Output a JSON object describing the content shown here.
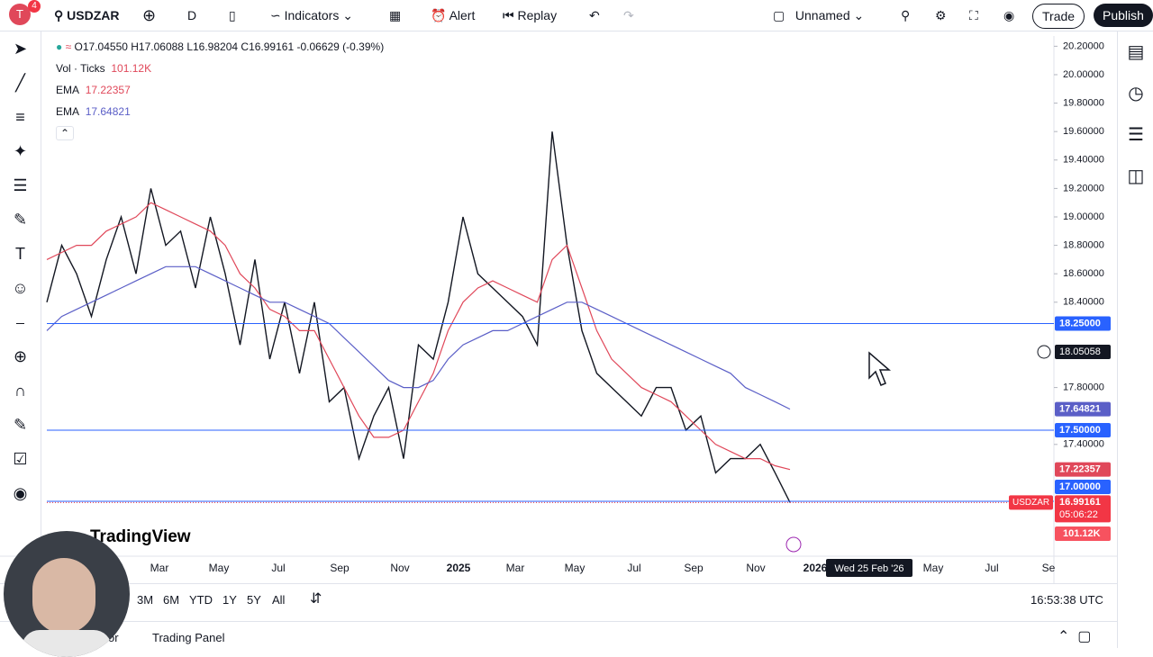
{
  "toolbar": {
    "badge": "4",
    "symbol": "USDZAR",
    "interval": "D",
    "indicators": "Indicators",
    "alert": "Alert",
    "replay": "Replay",
    "layout_name": "Unnamed",
    "trade": "Trade",
    "publish": "Publish"
  },
  "legend": {
    "open": "O17.04550",
    "high": "H17.06088",
    "low": "L16.98204",
    "close": "C16.99161",
    "change": "-0.06629 (-0.39%)",
    "vol_label": "Vol · Ticks",
    "vol_value": "101.12K",
    "ema_fast_label": "EMA",
    "ema_fast_value": "17.22357",
    "ema_slow_label": "EMA",
    "ema_slow_value": "17.64821"
  },
  "chart_data": {
    "type": "line",
    "ylim": [
      16.633,
      20.272
    ],
    "yticks": [
      {
        "value": 20.2,
        "label": "20.20000"
      },
      {
        "value": 20.0,
        "label": "20.00000"
      },
      {
        "value": 19.8,
        "label": "19.80000"
      },
      {
        "value": 19.6,
        "label": "19.60000"
      },
      {
        "value": 19.4,
        "label": "19.40000"
      },
      {
        "value": 19.2,
        "label": "19.20000"
      },
      {
        "value": 19.0,
        "label": "19.00000"
      },
      {
        "value": 18.8,
        "label": "18.80000"
      },
      {
        "value": 18.6,
        "label": "18.60000"
      },
      {
        "value": 18.4,
        "label": "18.40000"
      },
      {
        "value": 17.8,
        "label": "17.80000"
      },
      {
        "value": 17.4,
        "label": "17.40000"
      }
    ],
    "series": [
      {
        "name": "USDZAR",
        "color": "#131722",
        "values": [
          18.4,
          18.8,
          18.6,
          18.3,
          18.7,
          19.0,
          18.6,
          19.2,
          18.8,
          18.9,
          18.5,
          19.0,
          18.6,
          18.1,
          18.7,
          18.0,
          18.4,
          17.9,
          18.4,
          17.7,
          17.8,
          17.3,
          17.6,
          17.8,
          17.3,
          18.1,
          18.0,
          18.4,
          19.0,
          18.6,
          18.5,
          18.4,
          18.3,
          18.1,
          19.6,
          18.8,
          18.2,
          17.9,
          17.8,
          17.7,
          17.6,
          17.8,
          17.8,
          17.5,
          17.6,
          17.2,
          17.3,
          17.3,
          17.4,
          17.2,
          16.99161
        ]
      },
      {
        "name": "EMA",
        "color": "#e0485a",
        "values": [
          18.7,
          18.75,
          18.8,
          18.8,
          18.9,
          18.95,
          19.0,
          19.1,
          19.05,
          19.0,
          18.95,
          18.9,
          18.8,
          18.6,
          18.5,
          18.35,
          18.3,
          18.2,
          18.2,
          18.0,
          17.8,
          17.6,
          17.45,
          17.45,
          17.5,
          17.7,
          17.9,
          18.2,
          18.4,
          18.5,
          18.55,
          18.5,
          18.45,
          18.4,
          18.7,
          18.8,
          18.5,
          18.2,
          18.0,
          17.9,
          17.8,
          17.75,
          17.7,
          17.6,
          17.5,
          17.4,
          17.35,
          17.3,
          17.3,
          17.25,
          17.22357
        ]
      },
      {
        "name": "EMA",
        "color": "#5b5fc7",
        "values": [
          18.2,
          18.3,
          18.35,
          18.4,
          18.45,
          18.5,
          18.55,
          18.6,
          18.65,
          18.65,
          18.65,
          18.6,
          18.55,
          18.5,
          18.45,
          18.4,
          18.4,
          18.35,
          18.3,
          18.25,
          18.15,
          18.05,
          17.95,
          17.85,
          17.8,
          17.8,
          17.85,
          18.0,
          18.1,
          18.15,
          18.2,
          18.2,
          18.25,
          18.3,
          18.35,
          18.4,
          18.4,
          18.35,
          18.3,
          18.25,
          18.2,
          18.15,
          18.1,
          18.05,
          18.0,
          17.95,
          17.9,
          17.8,
          17.75,
          17.7,
          17.64821
        ]
      }
    ],
    "price_lines": [
      {
        "value": 18.25,
        "label": "18.25000",
        "color": "#2962ff"
      },
      {
        "value": 17.5,
        "label": "17.50000",
        "color": "#2962ff"
      },
      {
        "value": 17.0,
        "label": "17.00000",
        "color": "#2962ff"
      }
    ],
    "crosshair_price": {
      "value": 18.05058,
      "label": "18.05058"
    },
    "last_price": {
      "symbol": "USDZAR",
      "value": 16.99161,
      "label": "16.99161",
      "countdown": "05:06:22"
    },
    "volume_label": "101.12K",
    "time_labels": [
      "Mar",
      "May",
      "Jul",
      "Sep",
      "Nov",
      "2025",
      "Mar",
      "May",
      "Jul",
      "Sep",
      "Nov",
      "2026",
      "May",
      "Jul",
      "Se"
    ],
    "crosshair_date": "Wed 25 Feb '26",
    "watermark": "TradingView"
  },
  "bottom_bar": {
    "ranges": [
      "3M",
      "6M",
      "YTD",
      "1Y",
      "5Y",
      "All"
    ],
    "clock": "16:53:38 UTC"
  },
  "bottom_panel": {
    "tabs": [
      "or",
      "Trading Panel"
    ]
  }
}
